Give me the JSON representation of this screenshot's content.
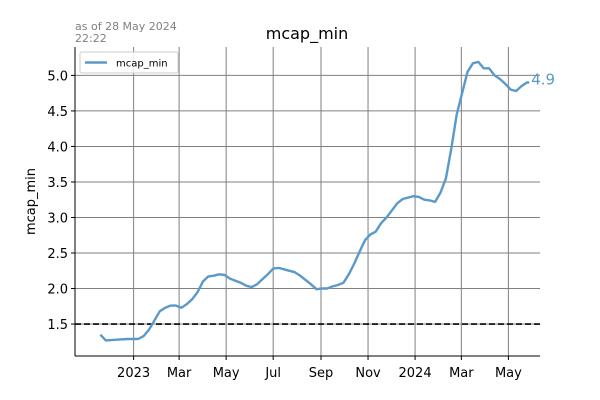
{
  "chart_data": {
    "type": "line",
    "title": "mcap_min",
    "timestamp": "as of 28 May 2024\n22:22",
    "ylabel": "mcap_min",
    "xlabel": "",
    "ylim": [
      1.05,
      5.4
    ],
    "xlim": [
      "2022-10-17",
      "2024-06-11"
    ],
    "grid": true,
    "legend": {
      "position": "top-left",
      "entries": [
        "mcap_min"
      ]
    },
    "colors": {
      "series": "#5b9ac8",
      "threshold": "#000000",
      "grid": "#808080"
    },
    "x_ticks": [
      {
        "date": "2023-01-01",
        "label": "2023"
      },
      {
        "date": "2023-03-01",
        "label": "Mar"
      },
      {
        "date": "2023-05-01",
        "label": "May"
      },
      {
        "date": "2023-07-01",
        "label": "Jul"
      },
      {
        "date": "2023-09-01",
        "label": "Sep"
      },
      {
        "date": "2023-11-01",
        "label": "Nov"
      },
      {
        "date": "2024-01-01",
        "label": "2024"
      },
      {
        "date": "2024-03-01",
        "label": "Mar"
      },
      {
        "date": "2024-05-01",
        "label": "May"
      }
    ],
    "y_ticks": [
      "1.5",
      "2.0",
      "2.5",
      "3.0",
      "3.5",
      "4.0",
      "4.5",
      "5.0"
    ],
    "threshold": 1.5,
    "end_label": "4.9",
    "series": [
      {
        "name": "mcap_min",
        "x": [
          "2022-11-19",
          "2022-11-26",
          "2022-12-10",
          "2022-12-24",
          "2023-01-07",
          "2023-01-14",
          "2023-01-21",
          "2023-01-28",
          "2023-02-04",
          "2023-02-11",
          "2023-02-18",
          "2023-02-25",
          "2023-03-04",
          "2023-03-11",
          "2023-03-18",
          "2023-03-25",
          "2023-04-01",
          "2023-04-08",
          "2023-04-15",
          "2023-04-22",
          "2023-04-29",
          "2023-05-06",
          "2023-05-13",
          "2023-05-20",
          "2023-05-27",
          "2023-06-03",
          "2023-06-10",
          "2023-06-17",
          "2023-06-24",
          "2023-07-01",
          "2023-07-08",
          "2023-07-15",
          "2023-07-22",
          "2023-07-29",
          "2023-08-05",
          "2023-08-12",
          "2023-08-19",
          "2023-08-26",
          "2023-09-02",
          "2023-09-09",
          "2023-09-16",
          "2023-09-23",
          "2023-09-30",
          "2023-10-07",
          "2023-10-14",
          "2023-10-21",
          "2023-10-28",
          "2023-11-04",
          "2023-11-11",
          "2023-11-18",
          "2023-11-25",
          "2023-12-02",
          "2023-12-09",
          "2023-12-16",
          "2023-12-23",
          "2023-12-30",
          "2024-01-06",
          "2024-01-13",
          "2024-01-20",
          "2024-01-27",
          "2024-02-03",
          "2024-02-10",
          "2024-02-17",
          "2024-02-24",
          "2024-03-02",
          "2024-03-09",
          "2024-03-16",
          "2024-03-23",
          "2024-03-30",
          "2024-04-06",
          "2024-04-13",
          "2024-04-20",
          "2024-04-27",
          "2024-05-04",
          "2024-05-11",
          "2024-05-18",
          "2024-05-25",
          "2024-05-28"
        ],
        "y": [
          1.35,
          1.27,
          1.28,
          1.29,
          1.29,
          1.33,
          1.42,
          1.55,
          1.68,
          1.73,
          1.76,
          1.76,
          1.73,
          1.78,
          1.85,
          1.95,
          2.1,
          2.17,
          2.18,
          2.2,
          2.19,
          2.14,
          2.11,
          2.08,
          2.04,
          2.02,
          2.06,
          2.13,
          2.2,
          2.28,
          2.29,
          2.27,
          2.25,
          2.23,
          2.18,
          2.12,
          2.06,
          1.99,
          2.0,
          2.0,
          2.03,
          2.05,
          2.08,
          2.2,
          2.35,
          2.52,
          2.68,
          2.76,
          2.8,
          2.92,
          3.0,
          3.1,
          3.2,
          3.26,
          3.28,
          3.3,
          3.29,
          3.25,
          3.24,
          3.22,
          3.35,
          3.55,
          3.97,
          4.45,
          4.75,
          5.05,
          5.17,
          5.19,
          5.1,
          5.1,
          5.0,
          4.95,
          4.88,
          4.8,
          4.78,
          4.85,
          4.9,
          4.9
        ]
      }
    ]
  }
}
